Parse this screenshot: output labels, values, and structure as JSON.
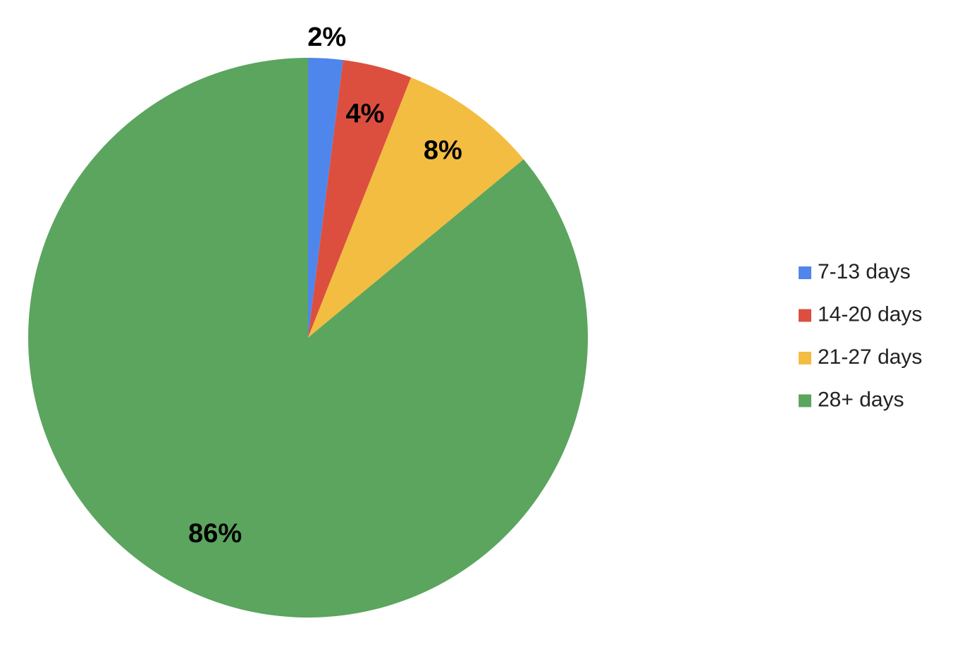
{
  "chart_data": {
    "type": "pie",
    "categories": [
      "7-13 days",
      "14-20 days",
      "21-27 days",
      "28+ days"
    ],
    "values": [
      2,
      4,
      8,
      86
    ],
    "value_labels": [
      "2%",
      "4%",
      "8%",
      "86%"
    ],
    "colors": [
      "#4e86ec",
      "#dc4f3e",
      "#f3bd41",
      "#5ba55e"
    ],
    "legend": "right"
  }
}
